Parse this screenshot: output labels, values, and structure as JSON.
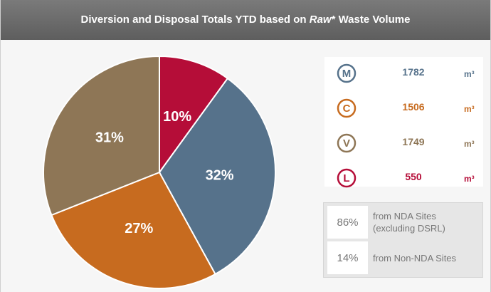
{
  "header": {
    "title_start": "Diversion and Disposal Totals YTD based on ",
    "title_emphasis": "Raw",
    "title_end": "* Waste Volume"
  },
  "chart_data": {
    "type": "pie",
    "values": [
      10,
      32,
      27,
      31
    ],
    "value_labels": [
      "10%",
      "32%",
      "27%",
      "31%"
    ],
    "colors": [
      "#b50d38",
      "#56728b",
      "#c76b1f",
      "#8e7656"
    ]
  },
  "volumes": {
    "rows": [
      {
        "icon": "M",
        "value": 1782,
        "unit": "m³",
        "color": "#56728b"
      },
      {
        "icon": "C",
        "value": 1506,
        "unit": "m³",
        "color": "#c76b1f"
      },
      {
        "icon": "V",
        "value": 1749,
        "unit": "m³",
        "color": "#8e7656"
      },
      {
        "icon": "L",
        "value": 550,
        "unit": "m³",
        "color": "#b50d38"
      }
    ]
  },
  "sites": {
    "rows": [
      {
        "share": "86%",
        "label": "from NDA Sites (excluding DSRL)"
      },
      {
        "share": "14%",
        "label": "from Non-NDA Sites"
      }
    ]
  }
}
